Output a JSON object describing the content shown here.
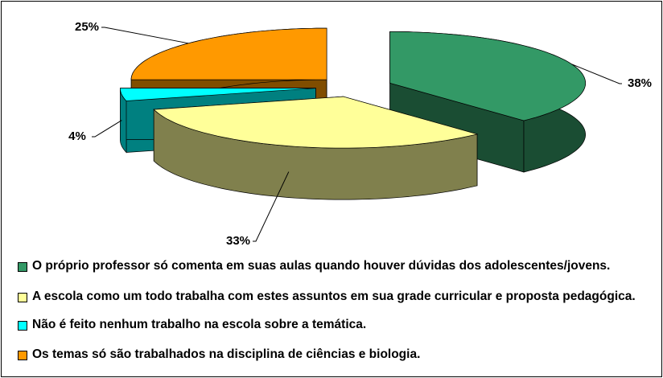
{
  "chart_data": {
    "type": "pie3d",
    "categories": [
      "O próprio professor só comenta em suas aulas quando houver dúvidas dos adolescentes/jovens.",
      "A escola como um todo trabalha com estes assuntos em sua grade curricular e proposta pedagógica.",
      "Não é feito nenhum trabalho na escola sobre a temática.",
      "Os temas só são trabalhados na disciplina de ciências e biologia."
    ],
    "values": [
      38,
      33,
      4,
      25
    ],
    "value_labels": [
      "38%",
      "33%",
      "4%",
      "25%"
    ],
    "colors": [
      "#339966",
      "#ffff99",
      "#00ffff",
      "#ff9900"
    ]
  }
}
